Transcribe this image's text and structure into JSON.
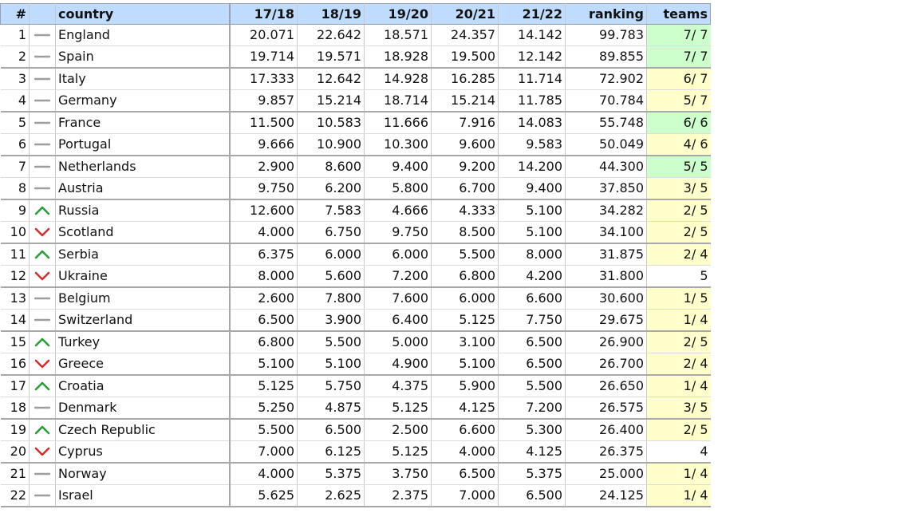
{
  "table": {
    "headers": {
      "num": "#",
      "trend": "",
      "country": "country",
      "s1718": "17/18",
      "s1819": "18/19",
      "s1920": "19/20",
      "s2021": "20/21",
      "s2122": "21/22",
      "ranking": "ranking",
      "teams": "teams"
    },
    "colors": {
      "header_bg": "#bfdcff",
      "teams_green": "#ccffcc",
      "teams_yellow": "#ffffcc",
      "trend_up": "#2a9d3a",
      "trend_down": "#d32f2f",
      "trend_same": "#9e9e9e"
    },
    "rows": [
      {
        "num": "1",
        "trend": "same",
        "country": "England",
        "s1718": "20.071",
        "s1819": "22.642",
        "s1920": "18.571",
        "s2021": "24.357",
        "s2122": "14.142",
        "ranking": "99.783",
        "teams": "7/ 7",
        "teams_status": "green"
      },
      {
        "num": "2",
        "trend": "same",
        "country": "Spain",
        "s1718": "19.714",
        "s1819": "19.571",
        "s1920": "18.928",
        "s2021": "19.500",
        "s2122": "12.142",
        "ranking": "89.855",
        "teams": "7/ 7",
        "teams_status": "green"
      },
      {
        "num": "3",
        "trend": "same",
        "country": "Italy",
        "s1718": "17.333",
        "s1819": "12.642",
        "s1920": "14.928",
        "s2021": "16.285",
        "s2122": "11.714",
        "ranking": "72.902",
        "teams": "6/ 7",
        "teams_status": "yellow"
      },
      {
        "num": "4",
        "trend": "same",
        "country": "Germany",
        "s1718": "9.857",
        "s1819": "15.214",
        "s1920": "18.714",
        "s2021": "15.214",
        "s2122": "11.785",
        "ranking": "70.784",
        "teams": "5/ 7",
        "teams_status": "yellow"
      },
      {
        "num": "5",
        "trend": "same",
        "country": "France",
        "s1718": "11.500",
        "s1819": "10.583",
        "s1920": "11.666",
        "s2021": "7.916",
        "s2122": "14.083",
        "ranking": "55.748",
        "teams": "6/ 6",
        "teams_status": "green"
      },
      {
        "num": "6",
        "trend": "same",
        "country": "Portugal",
        "s1718": "9.666",
        "s1819": "10.900",
        "s1920": "10.300",
        "s2021": "9.600",
        "s2122": "9.583",
        "ranking": "50.049",
        "teams": "4/ 6",
        "teams_status": "yellow"
      },
      {
        "num": "7",
        "trend": "same",
        "country": "Netherlands",
        "s1718": "2.900",
        "s1819": "8.600",
        "s1920": "9.400",
        "s2021": "9.200",
        "s2122": "14.200",
        "ranking": "44.300",
        "teams": "5/ 5",
        "teams_status": "green"
      },
      {
        "num": "8",
        "trend": "same",
        "country": "Austria",
        "s1718": "9.750",
        "s1819": "6.200",
        "s1920": "5.800",
        "s2021": "6.700",
        "s2122": "9.400",
        "ranking": "37.850",
        "teams": "3/ 5",
        "teams_status": "yellow"
      },
      {
        "num": "9",
        "trend": "up",
        "country": "Russia",
        "s1718": "12.600",
        "s1819": "7.583",
        "s1920": "4.666",
        "s2021": "4.333",
        "s2122": "5.100",
        "ranking": "34.282",
        "teams": "2/ 5",
        "teams_status": "yellow"
      },
      {
        "num": "10",
        "trend": "down",
        "country": "Scotland",
        "s1718": "4.000",
        "s1819": "6.750",
        "s1920": "9.750",
        "s2021": "8.500",
        "s2122": "5.100",
        "ranking": "34.100",
        "teams": "2/ 5",
        "teams_status": "yellow"
      },
      {
        "num": "11",
        "trend": "up",
        "country": "Serbia",
        "s1718": "6.375",
        "s1819": "6.000",
        "s1920": "6.000",
        "s2021": "5.500",
        "s2122": "8.000",
        "ranking": "31.875",
        "teams": "2/ 4",
        "teams_status": "yellow"
      },
      {
        "num": "12",
        "trend": "down",
        "country": "Ukraine",
        "s1718": "8.000",
        "s1819": "5.600",
        "s1920": "7.200",
        "s2021": "6.800",
        "s2122": "4.200",
        "ranking": "31.800",
        "teams": "5",
        "teams_status": "none"
      },
      {
        "num": "13",
        "trend": "same",
        "country": "Belgium",
        "s1718": "2.600",
        "s1819": "7.800",
        "s1920": "7.600",
        "s2021": "6.000",
        "s2122": "6.600",
        "ranking": "30.600",
        "teams": "1/ 5",
        "teams_status": "yellow"
      },
      {
        "num": "14",
        "trend": "same",
        "country": "Switzerland",
        "s1718": "6.500",
        "s1819": "3.900",
        "s1920": "6.400",
        "s2021": "5.125",
        "s2122": "7.750",
        "ranking": "29.675",
        "teams": "1/ 4",
        "teams_status": "yellow"
      },
      {
        "num": "15",
        "trend": "up",
        "country": "Turkey",
        "s1718": "6.800",
        "s1819": "5.500",
        "s1920": "5.000",
        "s2021": "3.100",
        "s2122": "6.500",
        "ranking": "26.900",
        "teams": "2/ 5",
        "teams_status": "yellow"
      },
      {
        "num": "16",
        "trend": "down",
        "country": "Greece",
        "s1718": "5.100",
        "s1819": "5.100",
        "s1920": "4.900",
        "s2021": "5.100",
        "s2122": "6.500",
        "ranking": "26.700",
        "teams": "2/ 4",
        "teams_status": "yellow"
      },
      {
        "num": "17",
        "trend": "up",
        "country": "Croatia",
        "s1718": "5.125",
        "s1819": "5.750",
        "s1920": "4.375",
        "s2021": "5.900",
        "s2122": "5.500",
        "ranking": "26.650",
        "teams": "1/ 4",
        "teams_status": "yellow"
      },
      {
        "num": "18",
        "trend": "same",
        "country": "Denmark",
        "s1718": "5.250",
        "s1819": "4.875",
        "s1920": "5.125",
        "s2021": "4.125",
        "s2122": "7.200",
        "ranking": "26.575",
        "teams": "3/ 5",
        "teams_status": "yellow"
      },
      {
        "num": "19",
        "trend": "up",
        "country": "Czech Republic",
        "s1718": "5.500",
        "s1819": "6.500",
        "s1920": "2.500",
        "s2021": "6.600",
        "s2122": "5.300",
        "ranking": "26.400",
        "teams": "2/ 5",
        "teams_status": "yellow"
      },
      {
        "num": "20",
        "trend": "down",
        "country": "Cyprus",
        "s1718": "7.000",
        "s1819": "6.125",
        "s1920": "5.125",
        "s2021": "4.000",
        "s2122": "4.125",
        "ranking": "26.375",
        "teams": "4",
        "teams_status": "none"
      },
      {
        "num": "21",
        "trend": "same",
        "country": "Norway",
        "s1718": "4.000",
        "s1819": "5.375",
        "s1920": "3.750",
        "s2021": "6.500",
        "s2122": "5.375",
        "ranking": "25.000",
        "teams": "1/ 4",
        "teams_status": "yellow"
      },
      {
        "num": "22",
        "trend": "same",
        "country": "Israel",
        "s1718": "5.625",
        "s1819": "2.625",
        "s1920": "2.375",
        "s2021": "7.000",
        "s2122": "6.500",
        "ranking": "24.125",
        "teams": "1/ 4",
        "teams_status": "yellow"
      }
    ]
  }
}
